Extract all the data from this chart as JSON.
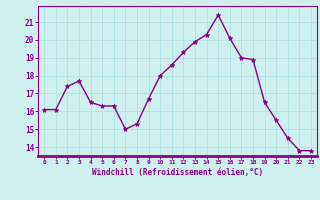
{
  "x": [
    0,
    1,
    2,
    3,
    4,
    5,
    6,
    7,
    8,
    9,
    10,
    11,
    12,
    13,
    14,
    15,
    16,
    17,
    18,
    19,
    20,
    21,
    22,
    23
  ],
  "y": [
    16.1,
    16.1,
    17.4,
    17.7,
    16.5,
    16.3,
    16.3,
    15.0,
    15.3,
    16.7,
    18.0,
    18.6,
    19.3,
    19.9,
    20.3,
    21.4,
    20.1,
    19.0,
    18.9,
    16.5,
    15.5,
    14.5,
    13.8,
    13.8
  ],
  "line_color": "#880088",
  "marker": "*",
  "markersize": 3.5,
  "linewidth": 1.0,
  "xlabel": "Windchill (Refroidissement éolien,°C)",
  "yticks": [
    14,
    15,
    16,
    17,
    18,
    19,
    20,
    21
  ],
  "xlim": [
    -0.5,
    23.5
  ],
  "ylim": [
    13.5,
    21.9
  ],
  "bg_color": "#cff0ee",
  "grid_color": "#aadddd",
  "xlabel_color": "#880088",
  "tick_color": "#880088",
  "spine_color": "#880088",
  "bottom_bar_color": "#880088"
}
